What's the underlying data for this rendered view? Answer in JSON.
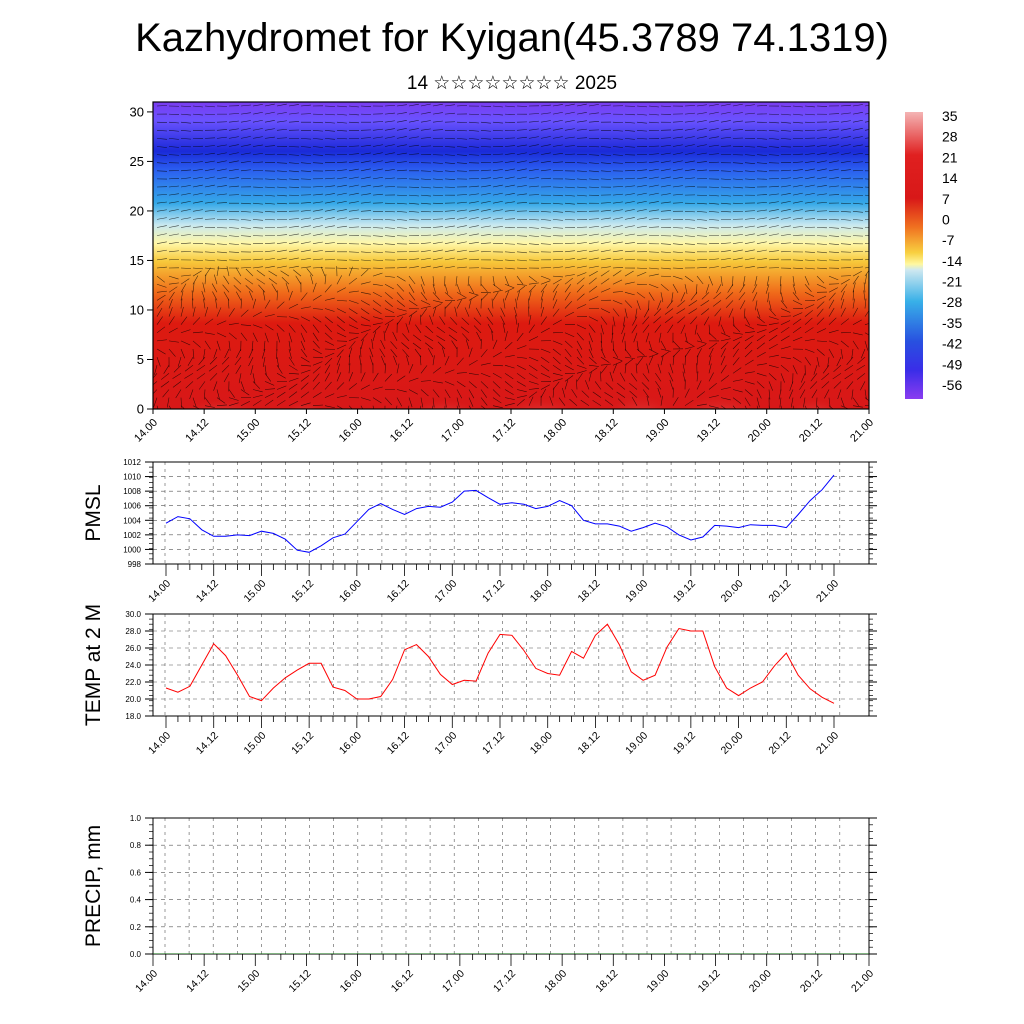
{
  "title": "Kazhydromet for Kyigan(45.3789 74.1319)",
  "subtitle": "14 ☆☆☆☆☆☆☆☆ 2025",
  "colors": {
    "pmsl_line": "#0000ff",
    "temp_line": "#ff0000",
    "precip_line": "#006400",
    "grid": "#555555"
  },
  "chart_data": [
    {
      "id": "vertical-section",
      "type": "heatmap",
      "title": "",
      "xlabel": "",
      "ylabel": "",
      "x_tick_labels": [
        "14.00",
        "14.12",
        "15.00",
        "15.12",
        "16.00",
        "16.12",
        "17.00",
        "17.12",
        "18.00",
        "18.12",
        "19.00",
        "19.12",
        "20.00",
        "20.12",
        "21.00"
      ],
      "y_ticks": [
        0,
        5,
        10,
        15,
        20,
        25,
        30
      ],
      "ylim": [
        0,
        31
      ],
      "colorbar_labels": [
        "35",
        "28",
        "21",
        "14",
        "7",
        "0",
        "-7",
        "-14",
        "-21",
        "-28",
        "-35",
        "-42",
        "-49",
        "-56"
      ],
      "colorbar_range": [
        -60,
        40
      ],
      "overlay": "wind vectors"
    },
    {
      "id": "pmsl",
      "type": "line",
      "ylabel": "PMSL",
      "ylim": [
        998,
        1012
      ],
      "y_ticks": [
        998,
        1000,
        1002,
        1004,
        1006,
        1008,
        1010,
        1012
      ],
      "x_tick_labels": [
        "14.00",
        "14.12",
        "15.00",
        "15.12",
        "16.00",
        "16.12",
        "17.00",
        "17.12",
        "18.00",
        "18.12",
        "19.00",
        "19.12",
        "20.00",
        "20.12",
        "21.00"
      ],
      "series": [
        {
          "values": [
            1003.6,
            1004.5,
            1004.2,
            1002.7,
            1001.8,
            1001.8,
            1002.0,
            1001.9,
            1002.5,
            1002.2,
            1001.4,
            999.9,
            999.6,
            1000.5,
            1001.6,
            1002.1,
            1003.8,
            1005.5,
            1006.3,
            1005.5,
            1004.8,
            1005.6,
            1005.9,
            1005.8,
            1006.5,
            1008.0,
            1008.1,
            1007.1,
            1006.2,
            1006.4,
            1006.2,
            1005.6,
            1005.9,
            1006.7,
            1006.0,
            1004.0,
            1003.5,
            1003.5,
            1003.2,
            1002.5,
            1003.0,
            1003.6,
            1003.1,
            1002.0,
            1001.3,
            1001.7,
            1003.3,
            1003.2,
            1003.0,
            1003.4,
            1003.3,
            1003.3,
            1003.0,
            1004.8,
            1006.7,
            1008.2,
            1010.2
          ]
        }
      ]
    },
    {
      "id": "temp",
      "type": "line",
      "ylabel": "TEMP at 2 M",
      "ylim": [
        18,
        30
      ],
      "y_ticks": [
        18,
        20,
        22,
        24,
        26,
        28,
        30
      ],
      "y_tick_labels": [
        "18.0",
        "20.0",
        "22.0",
        "24.0",
        "26.0",
        "28.0",
        "30.0"
      ],
      "x_tick_labels": [
        "14.00",
        "14.12",
        "15.00",
        "15.12",
        "16.00",
        "16.12",
        "17.00",
        "17.12",
        "18.00",
        "18.12",
        "19.00",
        "19.12",
        "20.00",
        "20.12",
        "21.00"
      ],
      "series": [
        {
          "values": [
            21.3,
            20.8,
            21.5,
            24.0,
            26.5,
            25.1,
            22.8,
            20.3,
            19.8,
            21.3,
            22.5,
            23.4,
            24.2,
            24.2,
            21.4,
            21.0,
            20.0,
            20.0,
            20.3,
            22.3,
            25.8,
            26.4,
            25.0,
            22.9,
            21.7,
            22.2,
            22.1,
            25.4,
            27.6,
            27.5,
            25.7,
            23.6,
            23.0,
            22.8,
            25.6,
            24.8,
            27.5,
            28.8,
            26.4,
            23.2,
            22.2,
            22.8,
            26.1,
            28.3,
            28.0,
            28.0,
            23.8,
            21.3,
            20.4,
            21.3,
            22.0,
            23.9,
            25.4,
            22.8,
            21.2,
            20.2,
            19.5
          ]
        }
      ]
    },
    {
      "id": "precip",
      "type": "line",
      "ylabel": "PRECIP, mm",
      "ylim": [
        0,
        1
      ],
      "y_ticks": [
        0,
        0.2,
        0.4,
        0.6,
        0.8,
        1.0
      ],
      "y_tick_labels": [
        "0.0",
        "0.2",
        "0.4",
        "0.6",
        "0.8",
        "1.0"
      ],
      "x_tick_labels": [
        "14.00",
        "14.12",
        "15.00",
        "15.12",
        "16.00",
        "16.12",
        "17.00",
        "17.12",
        "18.00",
        "18.12",
        "19.00",
        "19.12",
        "20.00",
        "20.12",
        "21.00"
      ],
      "series": [
        {
          "values": [
            0,
            0,
            0,
            0,
            0,
            0,
            0,
            0,
            0,
            0,
            0,
            0,
            0,
            0,
            0,
            0,
            0,
            0,
            0,
            0,
            0,
            0,
            0,
            0,
            0,
            0,
            0,
            0,
            0,
            0,
            0,
            0,
            0,
            0,
            0,
            0,
            0,
            0,
            0,
            0,
            0,
            0,
            0,
            0,
            0,
            0,
            0,
            0,
            0,
            0,
            0,
            0,
            0,
            0,
            0,
            0,
            0
          ]
        }
      ]
    }
  ]
}
